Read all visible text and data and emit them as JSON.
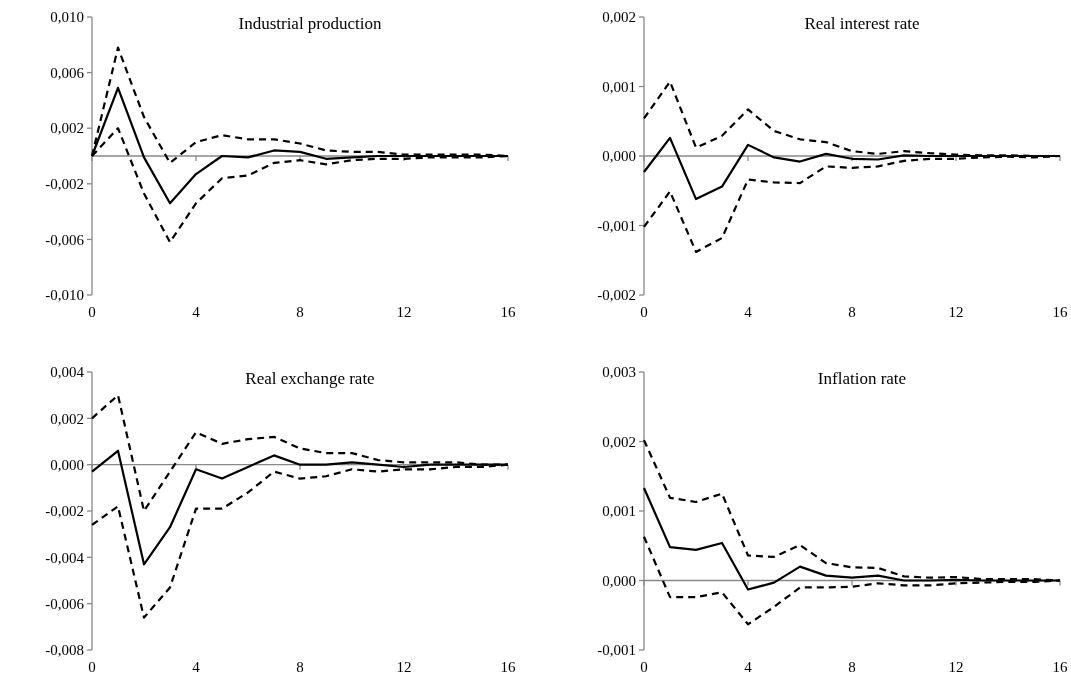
{
  "chart_data": [
    {
      "type": "line",
      "title": "Industrial production",
      "x": [
        0,
        1,
        2,
        3,
        4,
        5,
        6,
        7,
        8,
        9,
        10,
        11,
        12,
        13,
        14,
        15,
        16
      ],
      "xlim": [
        0,
        16
      ],
      "xticks": [
        0,
        4,
        8,
        12,
        16
      ],
      "ylim": [
        -0.01,
        0.01
      ],
      "yticks": [
        {
          "value": -0.01,
          "label": "-0,010"
        },
        {
          "value": -0.006,
          "label": "-0,006"
        },
        {
          "value": -0.002,
          "label": "-0,002"
        },
        {
          "value": 0.002,
          "label": "0,002"
        },
        {
          "value": 0.006,
          "label": "0,006"
        },
        {
          "value": 0.01,
          "label": "0,010"
        }
      ],
      "series": [
        {
          "color": "#000000",
          "line_style": "dashed",
          "values": [
            0,
            0.0078,
            0.0028,
            -0.0005,
            0.001,
            0.0015,
            0.0012,
            0.0012,
            0.0009,
            0.0004,
            0.0003,
            0.0003,
            0.0001,
            0.0001,
            0.0001,
            0.0001,
            0
          ]
        },
        {
          "color": "#000000",
          "line_style": "dashed",
          "values": [
            0,
            0.002,
            -0.0027,
            -0.0062,
            -0.0034,
            -0.0016,
            -0.0014,
            -0.0005,
            -0.0003,
            -0.0006,
            -0.0003,
            -0.0002,
            -0.0002,
            -0.0001,
            -0.0001,
            -0.0001,
            0
          ]
        },
        {
          "color": "#000000",
          "line_style": "solid",
          "values": [
            0,
            0.0049,
            -0.0001,
            -0.0034,
            -0.0013,
            0,
            -0.0001,
            0.0004,
            0.0003,
            -0.0002,
            -0.0001,
            0,
            0,
            0,
            0,
            0,
            0
          ]
        }
      ]
    },
    {
      "type": "line",
      "title": "Real interest rate",
      "x": [
        0,
        1,
        2,
        3,
        4,
        5,
        6,
        7,
        8,
        9,
        10,
        11,
        12,
        13,
        14,
        15,
        16
      ],
      "xlim": [
        0,
        16
      ],
      "xticks": [
        0,
        4,
        8,
        12,
        16
      ],
      "ylim": [
        -0.002,
        0.002
      ],
      "yticks": [
        {
          "value": -0.002,
          "label": "-0,002"
        },
        {
          "value": -0.001,
          "label": "-0,001"
        },
        {
          "value": 0,
          "label": "0,000"
        },
        {
          "value": 0.001,
          "label": "0,001"
        },
        {
          "value": 0.002,
          "label": "0,002"
        }
      ],
      "series": [
        {
          "color": "#000000",
          "line_style": "dashed",
          "values": [
            0.00054,
            0.00107,
            0.00012,
            0.00029,
            0.00067,
            0.00036,
            0.00024,
            0.0002,
            7e-05,
            3e-05,
            7e-05,
            4e-05,
            2e-05,
            1e-05,
            1e-05,
            0,
            0
          ]
        },
        {
          "color": "#000000",
          "line_style": "dashed",
          "values": [
            -0.00102,
            -0.00051,
            -0.00138,
            -0.00118,
            -0.00034,
            -0.00038,
            -0.00039,
            -0.00015,
            -0.00017,
            -0.00015,
            -7e-05,
            -4e-05,
            -4e-05,
            -2e-05,
            -1e-05,
            -2e-05,
            0
          ]
        },
        {
          "color": "#000000",
          "line_style": "solid",
          "values": [
            -0.00023,
            0.00026,
            -0.00062,
            -0.00044,
            0.00016,
            -2e-05,
            -8e-05,
            3e-05,
            -4e-05,
            -5e-05,
            1e-05,
            0,
            0,
            0,
            0,
            0,
            0
          ]
        }
      ]
    },
    {
      "type": "line",
      "title": "Real exchange rate",
      "x": [
        0,
        1,
        2,
        3,
        4,
        5,
        6,
        7,
        8,
        9,
        10,
        11,
        12,
        13,
        14,
        15,
        16
      ],
      "xlim": [
        0,
        16
      ],
      "xticks": [
        0,
        4,
        8,
        12,
        16
      ],
      "ylim": [
        -0.008,
        0.004
      ],
      "yticks": [
        {
          "value": -0.008,
          "label": "-0,008"
        },
        {
          "value": -0.006,
          "label": "-0,006"
        },
        {
          "value": -0.004,
          "label": "-0,004"
        },
        {
          "value": -0.002,
          "label": "-0,002"
        },
        {
          "value": 0,
          "label": "0,000"
        },
        {
          "value": 0.002,
          "label": "0,002"
        },
        {
          "value": 0.004,
          "label": "0,004"
        }
      ],
      "series": [
        {
          "color": "#000000",
          "line_style": "dashed",
          "values": [
            0.002,
            0.003,
            -0.002,
            -0.0003,
            0.0014,
            0.0009,
            0.0011,
            0.0012,
            0.0007,
            0.0005,
            0.0005,
            0.0002,
            0.0001,
            0.0001,
            0.0001,
            0,
            0
          ]
        },
        {
          "color": "#000000",
          "line_style": "dashed",
          "values": [
            -0.0026,
            -0.0018,
            -0.0066,
            -0.0053,
            -0.0019,
            -0.0019,
            -0.0012,
            -0.0003,
            -0.0006,
            -0.0005,
            -0.0002,
            -0.0003,
            -0.0002,
            -0.0002,
            -0.0001,
            -0.0001,
            0
          ]
        },
        {
          "color": "#000000",
          "line_style": "solid",
          "values": [
            -0.0003,
            0.0006,
            -0.0043,
            -0.0027,
            -0.0002,
            -0.0006,
            -0.0001,
            0.0004,
            0,
            0,
            0.0001,
            0,
            -0.0001,
            0,
            0,
            0,
            0
          ]
        }
      ]
    },
    {
      "type": "line",
      "title": "Inflation rate",
      "x": [
        0,
        1,
        2,
        3,
        4,
        5,
        6,
        7,
        8,
        9,
        10,
        11,
        12,
        13,
        14,
        15,
        16
      ],
      "xlim": [
        0,
        16
      ],
      "xticks": [
        0,
        4,
        8,
        12,
        16
      ],
      "ylim": [
        -0.001,
        0.003
      ],
      "yticks": [
        {
          "value": -0.001,
          "label": "-0,001"
        },
        {
          "value": 0,
          "label": "0,000"
        },
        {
          "value": 0.001,
          "label": "0,001"
        },
        {
          "value": 0.002,
          "label": "0,002"
        },
        {
          "value": 0.003,
          "label": "0,003"
        }
      ],
      "series": [
        {
          "color": "#000000",
          "line_style": "dashed",
          "values": [
            0.00202,
            0.00119,
            0.00113,
            0.00125,
            0.00036,
            0.00034,
            0.00051,
            0.00025,
            0.00019,
            0.00018,
            6e-05,
            4e-05,
            5e-05,
            2e-05,
            2e-05,
            2e-05,
            0
          ]
        },
        {
          "color": "#000000",
          "line_style": "dashed",
          "values": [
            0.00063,
            -0.00024,
            -0.00024,
            -0.00017,
            -0.00063,
            -0.00038,
            -0.0001,
            -0.0001,
            -9e-05,
            -4e-05,
            -7e-05,
            -7e-05,
            -4e-05,
            -3e-05,
            -2e-05,
            -2e-05,
            0
          ]
        },
        {
          "color": "#000000",
          "line_style": "solid",
          "values": [
            0.00133,
            0.00048,
            0.00044,
            0.00054,
            -0.00013,
            -3e-05,
            0.0002,
            7e-05,
            4e-05,
            7e-05,
            0,
            0,
            1e-05,
            0,
            0,
            0,
            0
          ]
        }
      ]
    }
  ]
}
